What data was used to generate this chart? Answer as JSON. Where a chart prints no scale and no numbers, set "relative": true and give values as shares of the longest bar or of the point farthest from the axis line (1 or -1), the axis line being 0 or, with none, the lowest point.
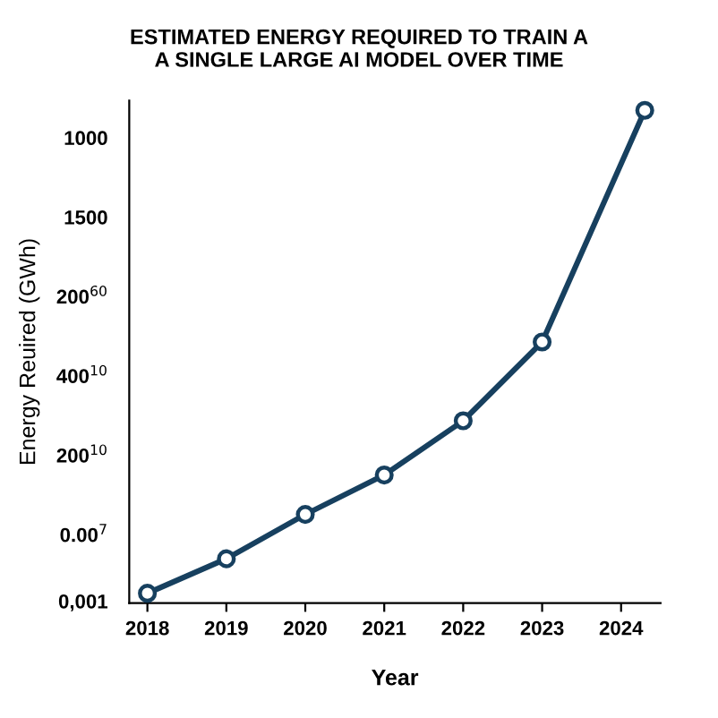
{
  "chart_data": {
    "type": "line",
    "title": "ESTIMATED ENERGY REQUIRED TO TRAIN A\nA SINGLE LARGE AI MODEL OVER TIME",
    "xlabel": "Year",
    "ylabel": "Energy Reuired (GWh)",
    "x": [
      2018,
      2019,
      2020,
      2021,
      2022,
      2023,
      2024.3
    ],
    "series": [
      {
        "color": "#17405f",
        "values": [
          0.02,
          0.09,
          0.18,
          0.26,
          0.37,
          0.53,
          1
        ]
      }
    ],
    "xlim": [
      2017.77,
      2024.5
    ],
    "xticks": [
      2018,
      2019,
      2020,
      2021,
      2022,
      2023,
      2024
    ],
    "relative": true,
    "annotations": [
      "0,001",
      "0.00$^{7}$",
      "200$^{10}$",
      "400$^{10}$",
      "200$^{60}$",
      "1500",
      "1000"
    ],
    "marker": "circle",
    "line_style": "solid"
  }
}
